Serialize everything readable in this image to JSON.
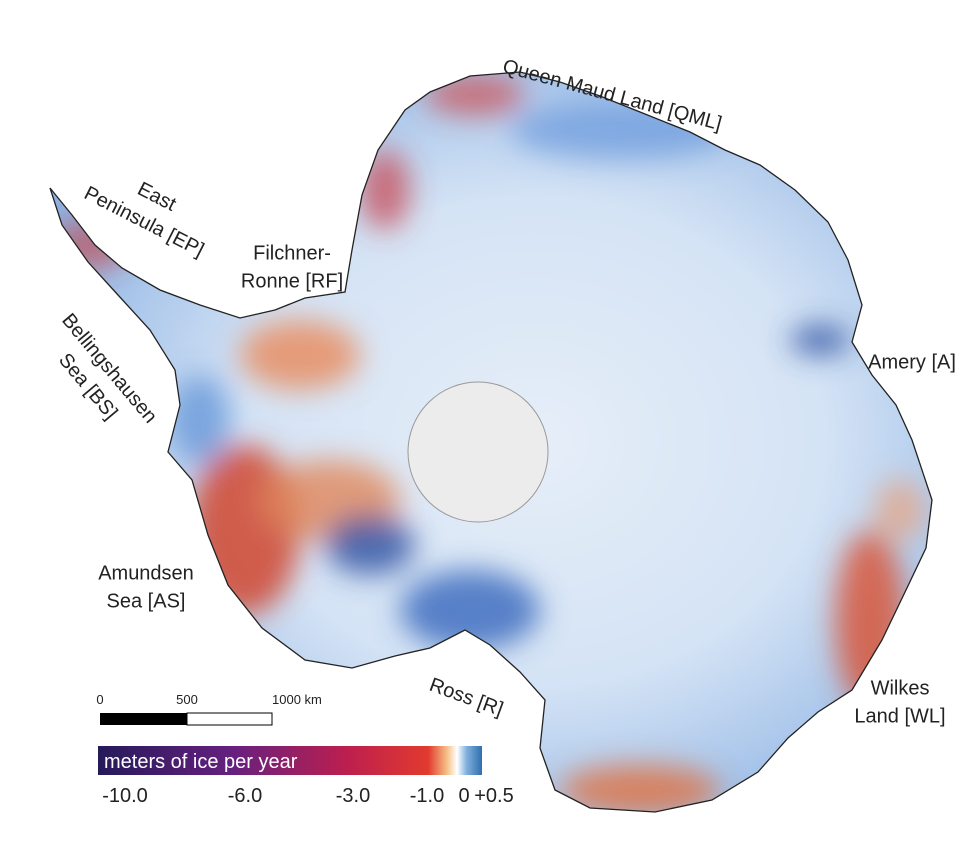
{
  "regions": [
    {
      "lines": [
        "Queen Maud Land [QML]"
      ]
    },
    {
      "lines": [
        "East",
        "Peninsula [EP]"
      ]
    },
    {
      "lines": [
        "Filchner-",
        "Ronne [RF]"
      ]
    },
    {
      "lines": [
        "Bellingshausen",
        "Sea [BS]"
      ]
    },
    {
      "lines": [
        "Amery [A]"
      ]
    },
    {
      "lines": [
        "Amundsen",
        "Sea [AS]"
      ]
    },
    {
      "lines": [
        "Ross [R]"
      ]
    },
    {
      "lines": [
        "Wilkes",
        "Land [WL]"
      ]
    }
  ],
  "scale_bar": {
    "ticks": [
      0,
      500,
      {
        "value": 1000,
        "label": "1000 km"
      }
    ]
  },
  "colorbar": {
    "title": "meters of ice per year",
    "ticks": [
      {
        "value": -10,
        "label": "-10.0"
      },
      {
        "value": -6,
        "label": "-6.0"
      },
      {
        "value": -3,
        "label": "-3.0"
      },
      {
        "value": -1,
        "label": "-1.0"
      },
      0,
      {
        "value": 0.5,
        "label": "+0.5"
      }
    ]
  }
}
